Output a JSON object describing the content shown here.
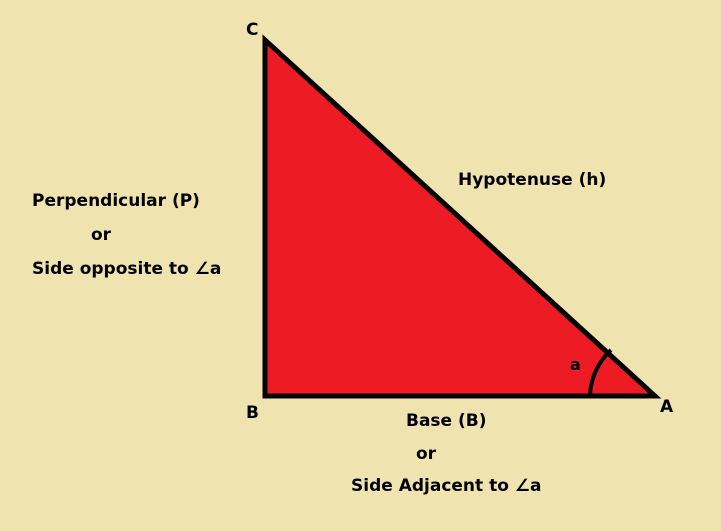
{
  "diagram": {
    "colors": {
      "background": "#efe4b0",
      "triangle_fill": "#ed1c24",
      "stroke": "#000000"
    },
    "vertices": {
      "a": "A",
      "b": "B",
      "c": "C"
    },
    "angle_label": "a",
    "hypotenuse_label": "Hypotenuse (h)",
    "perpendicular": {
      "line1": "Perpendicular (P)",
      "line2": "or",
      "line3": "Side opposite to ∠a"
    },
    "base": {
      "line1": "Base (B)",
      "line2": "or",
      "line3": "Side Adjacent to ∠a"
    }
  }
}
